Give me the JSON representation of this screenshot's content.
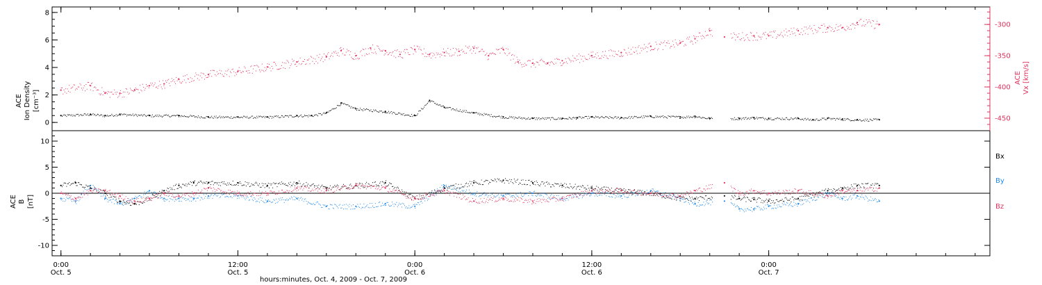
{
  "chart_data": [
    {
      "type": "scatter",
      "panel": "top",
      "ylabel_left": [
        "ACE",
        "Ion Density",
        "[cm⁻³]"
      ],
      "ylabel_right": [
        "ACE",
        "Vx [km/s]"
      ],
      "left_axis": {
        "ylim": [
          -0.6,
          8.4
        ],
        "ticks": [
          0,
          2,
          4,
          6,
          8
        ],
        "tick_labels": [
          "0",
          "2",
          "4",
          "6",
          "8"
        ],
        "color": "#000000"
      },
      "right_axis": {
        "ylim": [
          -470,
          -272
        ],
        "ticks": [
          -450,
          -400,
          -350,
          -300
        ],
        "tick_labels": [
          "-450",
          "-400",
          "-350",
          "-300"
        ],
        "color": "#e0305a"
      },
      "series": [
        {
          "color": "#000000",
          "axis": "left",
          "x": [
            0.0,
            2.0,
            3.0,
            4.0,
            6.0,
            8.0,
            10.0,
            12.0,
            14.0,
            16.0,
            17.0,
            18.0,
            19.0,
            20.0,
            22.0,
            24.0,
            25.0,
            26.0,
            28.0,
            30.0,
            32.0,
            34.0,
            35.0,
            36.0,
            38.0,
            40.0,
            42.0,
            43.0,
            44.0,
            46.0,
            47.0,
            48.0,
            50.0,
            51.0,
            52.0,
            53.0,
            54.0,
            55.5
          ],
          "y": [
            0.5,
            0.6,
            0.5,
            0.6,
            0.5,
            0.5,
            0.4,
            0.4,
            0.4,
            0.5,
            0.5,
            0.7,
            1.4,
            1.0,
            0.8,
            0.5,
            1.6,
            1.1,
            0.7,
            0.4,
            0.3,
            0.3,
            0.35,
            0.4,
            0.35,
            0.45,
            0.4,
            0.45,
            0.3,
            0.3,
            0.35,
            0.3,
            0.3,
            0.2,
            0.3,
            0.25,
            0.2,
            0.2
          ]
        },
        {
          "color": "#e0305a",
          "axis": "right",
          "x": [
            0.0,
            2.0,
            3.0,
            4.0,
            5.0,
            6.0,
            7.0,
            8.0,
            10.0,
            12.0,
            14.0,
            16.0,
            18.0,
            19.0,
            20.0,
            21.0,
            22.0,
            23.0,
            24.0,
            25.0,
            26.0,
            27.0,
            28.0,
            29.0,
            30.0,
            31.0,
            32.0,
            33.0,
            34.0,
            36.0,
            38.0,
            40.0,
            42.0,
            43.0,
            44.0,
            45.0,
            47.0,
            48.0,
            50.0,
            52.0,
            53.0,
            54.0,
            55.5
          ],
          "y": [
            -405,
            -398,
            -410,
            -410,
            -405,
            -398,
            -395,
            -388,
            -380,
            -375,
            -368,
            -360,
            -352,
            -342,
            -350,
            -338,
            -342,
            -348,
            -340,
            -348,
            -345,
            -343,
            -338,
            -350,
            -340,
            -360,
            -362,
            -362,
            -358,
            -350,
            -345,
            -335,
            -330,
            -323,
            -310,
            -320,
            -318,
            -318,
            -310,
            -305,
            -305,
            -297,
            -300
          ]
        }
      ]
    },
    {
      "type": "scatter",
      "panel": "bottom",
      "ylabel_left": [
        "ACE",
        "B",
        "[nT]"
      ],
      "left_axis": {
        "ylim": [
          -12,
          12
        ],
        "ticks": [
          -10,
          -5,
          0,
          5,
          10
        ],
        "tick_labels": [
          "-10",
          "-5",
          "0",
          "5",
          "10"
        ]
      },
      "legend": [
        "Bx",
        "By",
        "Bz"
      ],
      "legend_placement": "right",
      "zero_line": true,
      "series": [
        {
          "name": "Bx",
          "color": "#000000",
          "x": [
            0.0,
            1.0,
            2.0,
            3.0,
            4.0,
            5.0,
            6.0,
            7.0,
            8.0,
            9.0,
            10.0,
            12.0,
            14.0,
            16.0,
            18.0,
            20.0,
            22.0,
            24.0,
            26.0,
            28.0,
            30.0,
            32.0,
            34.0,
            36.0,
            38.0,
            40.0,
            42.0,
            43.0,
            45.0,
            46.0,
            47.0,
            48.0,
            50.0,
            52.0,
            53.0,
            54.0,
            55.5
          ],
          "y": [
            1.5,
            2.0,
            1.0,
            0.0,
            -1.5,
            -2.0,
            -1.0,
            0.5,
            1.5,
            2.0,
            2.0,
            2.0,
            1.5,
            2.0,
            1.0,
            1.5,
            2.0,
            -1.0,
            1.0,
            2.0,
            2.5,
            2.0,
            1.5,
            1.0,
            0.5,
            0.0,
            -1.0,
            -1.0,
            -0.5,
            -1.0,
            -1.2,
            -1.5,
            -1.0,
            0.5,
            1.0,
            1.5,
            1.5
          ]
        },
        {
          "name": "By",
          "color": "#1e88e5",
          "x": [
            0.0,
            1.0,
            2.0,
            3.0,
            4.0,
            5.0,
            6.0,
            7.0,
            8.0,
            9.0,
            10.0,
            12.0,
            14.0,
            16.0,
            18.0,
            20.0,
            22.0,
            24.0,
            26.0,
            28.0,
            30.0,
            32.0,
            34.0,
            36.0,
            38.0,
            40.0,
            42.0,
            43.0,
            45.0,
            46.0,
            47.0,
            48.0,
            50.0,
            52.0,
            53.0,
            54.0,
            55.5
          ],
          "y": [
            -1.0,
            -1.5,
            1.5,
            -1.0,
            -2.0,
            -1.0,
            0.5,
            -1.0,
            -1.0,
            -1.0,
            -0.5,
            -0.5,
            -1.5,
            -1.0,
            -2.5,
            -2.5,
            -2.0,
            -2.5,
            1.5,
            0.0,
            -0.5,
            0.0,
            -1.0,
            0.0,
            -0.5,
            0.5,
            -1.0,
            -2.0,
            -1.5,
            -3.0,
            -3.0,
            -2.5,
            -2.0,
            0.0,
            -1.0,
            -0.5,
            -1.5
          ]
        },
        {
          "name": "Bz",
          "color": "#e0305a",
          "x": [
            0.0,
            1.0,
            2.0,
            3.0,
            4.0,
            5.0,
            6.0,
            7.0,
            8.0,
            9.0,
            10.0,
            12.0,
            14.0,
            16.0,
            18.0,
            20.0,
            22.0,
            24.0,
            26.0,
            28.0,
            30.0,
            32.0,
            34.0,
            36.0,
            38.0,
            40.0,
            42.0,
            43.0,
            45.0,
            46.0,
            47.0,
            48.0,
            50.0,
            52.0,
            53.0,
            54.0,
            55.5
          ],
          "y": [
            0.0,
            -1.0,
            0.5,
            0.5,
            -0.5,
            -1.5,
            -1.0,
            0.0,
            -0.5,
            0.0,
            1.0,
            0.0,
            0.0,
            1.0,
            0.5,
            1.5,
            1.0,
            -1.0,
            0.5,
            -1.5,
            -1.0,
            -1.5,
            -1.0,
            0.5,
            0.5,
            0.0,
            -0.5,
            0.5,
            2.0,
            0.0,
            0.5,
            0.0,
            0.5,
            -0.5,
            0.5,
            0.5,
            1.0
          ]
        }
      ]
    }
  ],
  "x_axis": {
    "xlim": [
      -0.6,
      63
    ],
    "ticks": [
      0,
      12,
      24,
      36,
      48
    ],
    "tick_labels_top": [
      "0:00",
      "12:00",
      "0:00",
      "12:00",
      "0:00"
    ],
    "tick_labels_bottom": [
      "Oct. 5",
      "Oct. 5",
      "Oct. 6",
      "Oct. 6",
      "Oct. 7"
    ],
    "xlabel": "hours:minutes, Oct.  4, 2009 - Oct.  7, 2009"
  }
}
